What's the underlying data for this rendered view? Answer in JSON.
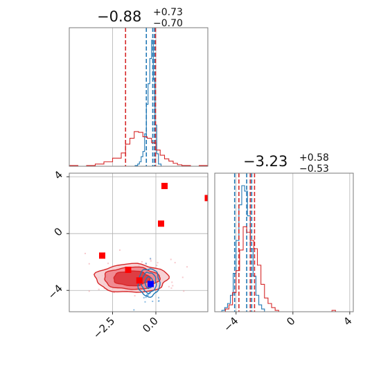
{
  "chart_data": [
    {
      "type": "histogram",
      "panel": "marginal-1",
      "title": {
        "main": "−0.88",
        "sup": "+0.73",
        "sub": "−0.70"
      },
      "xlim": [
        -5.0,
        3.0
      ],
      "grid": true,
      "series": [
        {
          "color": "#1f77b4",
          "bin_edges": [
            -1.2,
            -1.05,
            -0.95,
            -0.85,
            -0.75,
            -0.65,
            -0.55,
            -0.45,
            -0.35,
            -0.25,
            -0.15,
            -0.05,
            0.05,
            0.15,
            0.3
          ],
          "counts": [
            1,
            3,
            6,
            13,
            20,
            44,
            84,
            112,
            146,
            171,
            118,
            56,
            17,
            3
          ],
          "quantiles": [
            -0.55,
            -0.18,
            -0.08
          ]
        },
        {
          "color": "#d62728",
          "bin_edges": [
            -5.0,
            -4.5,
            -4.0,
            -3.5,
            -3.0,
            -2.5,
            -2.0,
            -1.75,
            -1.5,
            -1.25,
            -1.0,
            -0.75,
            -0.5,
            -0.25,
            0.0,
            0.25,
            0.5,
            0.75,
            1.0,
            1.25,
            1.5,
            1.75,
            2.0,
            2.5,
            3.0
          ],
          "counts": [
            1,
            0,
            1,
            3,
            6,
            11,
            18,
            30,
            38,
            47,
            46,
            40,
            38,
            32,
            22,
            15,
            10,
            7,
            4,
            2,
            1,
            1,
            0,
            1
          ],
          "quantiles": [
            -1.75,
            -0.02
          ]
        }
      ]
    },
    {
      "type": "scatter",
      "panel": "joint",
      "xlim": [
        -5.0,
        3.0
      ],
      "ylim": [
        -5.5,
        4.25
      ],
      "xticks": [
        "−2.5",
        "0.0"
      ],
      "yticks": [
        "4",
        "0",
        "−4"
      ],
      "xtick_values": [
        -2.5,
        0.0
      ],
      "ytick_values": [
        4,
        0,
        -4
      ],
      "grid": true,
      "contours": [
        {
          "color": "#d62728",
          "center": [
            -1.4,
            -3.15
          ],
          "radii": [
            [
              2.1,
              1.0
            ],
            [
              1.6,
              0.78
            ],
            [
              1.05,
              0.52
            ]
          ]
        },
        {
          "color": "#1f77b4",
          "center": [
            -0.4,
            -3.45
          ],
          "radii": [
            [
              0.62,
              0.98
            ],
            [
              0.42,
              0.72
            ],
            [
              0.22,
              0.4
            ]
          ]
        }
      ],
      "points": [
        {
          "color": "#ff0000",
          "marker": "square",
          "x": 0.5,
          "y": 3.35
        },
        {
          "color": "#ff0000",
          "marker": "square",
          "x": 3.0,
          "y": 2.5
        },
        {
          "color": "#ff0000",
          "marker": "square",
          "x": 0.3,
          "y": 0.7
        },
        {
          "color": "#ff0000",
          "marker": "square",
          "x": -3.1,
          "y": -1.55
        },
        {
          "color": "#ff0000",
          "marker": "square",
          "x": -1.6,
          "y": -2.55
        },
        {
          "color": "#ff0000",
          "marker": "square",
          "x": -0.95,
          "y": -3.3
        },
        {
          "color": "#0000ff",
          "marker": "square",
          "x": -0.3,
          "y": -3.55
        }
      ]
    },
    {
      "type": "histogram",
      "panel": "marginal-2",
      "title": {
        "main": "−3.23",
        "sup": "+0.58",
        "sub": "−0.53"
      },
      "xlim": [
        -5.5,
        4.25
      ],
      "xticks": [
        "−4",
        "0",
        "4"
      ],
      "xtick_values": [
        -4,
        0,
        4
      ],
      "grid": true,
      "series": [
        {
          "color": "#1f77b4",
          "bin_edges": [
            -5.0,
            -4.8,
            -4.6,
            -4.4,
            -4.2,
            -4.0,
            -3.8,
            -3.6,
            -3.4,
            -3.2,
            -3.0,
            -2.8,
            -2.6,
            -2.4,
            -2.2,
            -2.0
          ],
          "counts": [
            1,
            3,
            6,
            12,
            28,
            52,
            78,
            92,
            88,
            70,
            46,
            26,
            12,
            5,
            2
          ],
          "quantiles": [
            -4.1,
            -3.25,
            -2.9
          ]
        },
        {
          "color": "#d62728",
          "bin_edges": [
            -5.0,
            -4.75,
            -4.5,
            -4.25,
            -4.0,
            -3.75,
            -3.5,
            -3.25,
            -3.0,
            -2.75,
            -2.5,
            -2.25,
            -2.0,
            -1.75,
            -1.5,
            -1.25,
            -1.0,
            2.75,
            3.0
          ],
          "counts": [
            0,
            2,
            5,
            14,
            30,
            45,
            62,
            58,
            52,
            46,
            34,
            20,
            10,
            6,
            3,
            1,
            0,
            1
          ],
          "quantiles": [
            -3.8,
            -3.0,
            -2.7
          ]
        }
      ]
    }
  ]
}
